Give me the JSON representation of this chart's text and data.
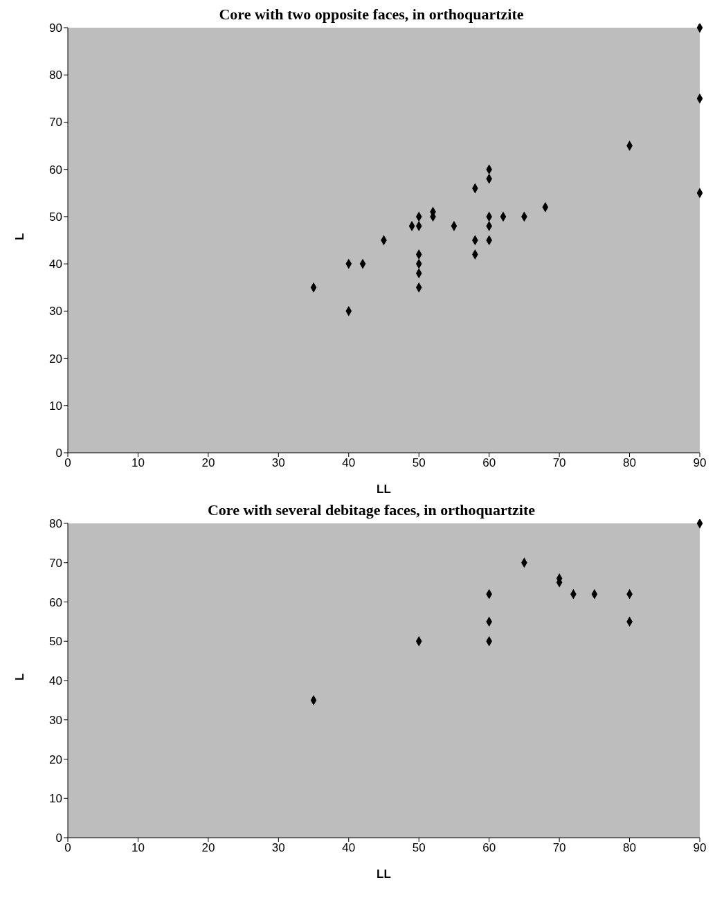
{
  "chart_data": [
    {
      "type": "scatter",
      "title": "Core with two opposite faces, in orthoquartzite",
      "xlabel": "LL",
      "ylabel": "L",
      "marker": "diamond",
      "xlim": [
        0,
        90
      ],
      "xticks": [
        0,
        10,
        20,
        30,
        40,
        50,
        60,
        70,
        80,
        90
      ],
      "ylim": [
        0,
        90
      ],
      "yticks": [
        0,
        10,
        20,
        30,
        40,
        50,
        60,
        70,
        80,
        90
      ],
      "series": [
        {
          "color": "#000000",
          "x": [
            35,
            40,
            40,
            42,
            45,
            49,
            50,
            50,
            50,
            50,
            50,
            50,
            52,
            52,
            55,
            58,
            58,
            58,
            60,
            60,
            60,
            60,
            60,
            62,
            65,
            68,
            80,
            90,
            90,
            90
          ],
          "values": [
            35,
            40,
            30,
            40,
            45,
            48,
            50,
            48,
            42,
            40,
            38,
            35,
            51,
            50,
            48,
            56,
            45,
            42,
            60,
            58,
            50,
            48,
            45,
            50,
            50,
            52,
            65,
            90,
            75,
            55
          ]
        }
      ]
    },
    {
      "type": "scatter",
      "title": "Core with several debitage faces, in orthoquartzite",
      "xlabel": "LL",
      "ylabel": "L",
      "marker": "diamond",
      "xlim": [
        0,
        90
      ],
      "xticks": [
        0,
        10,
        20,
        30,
        40,
        50,
        60,
        70,
        80,
        90
      ],
      "ylim": [
        0,
        80
      ],
      "yticks": [
        0,
        10,
        20,
        30,
        40,
        50,
        60,
        70,
        80
      ],
      "series": [
        {
          "color": "#000000",
          "x": [
            35,
            50,
            60,
            60,
            60,
            65,
            70,
            70,
            72,
            75,
            80,
            80,
            90
          ],
          "values": [
            35,
            50,
            62,
            55,
            50,
            70,
            66,
            65,
            62,
            62,
            62,
            55,
            80
          ]
        }
      ]
    }
  ]
}
